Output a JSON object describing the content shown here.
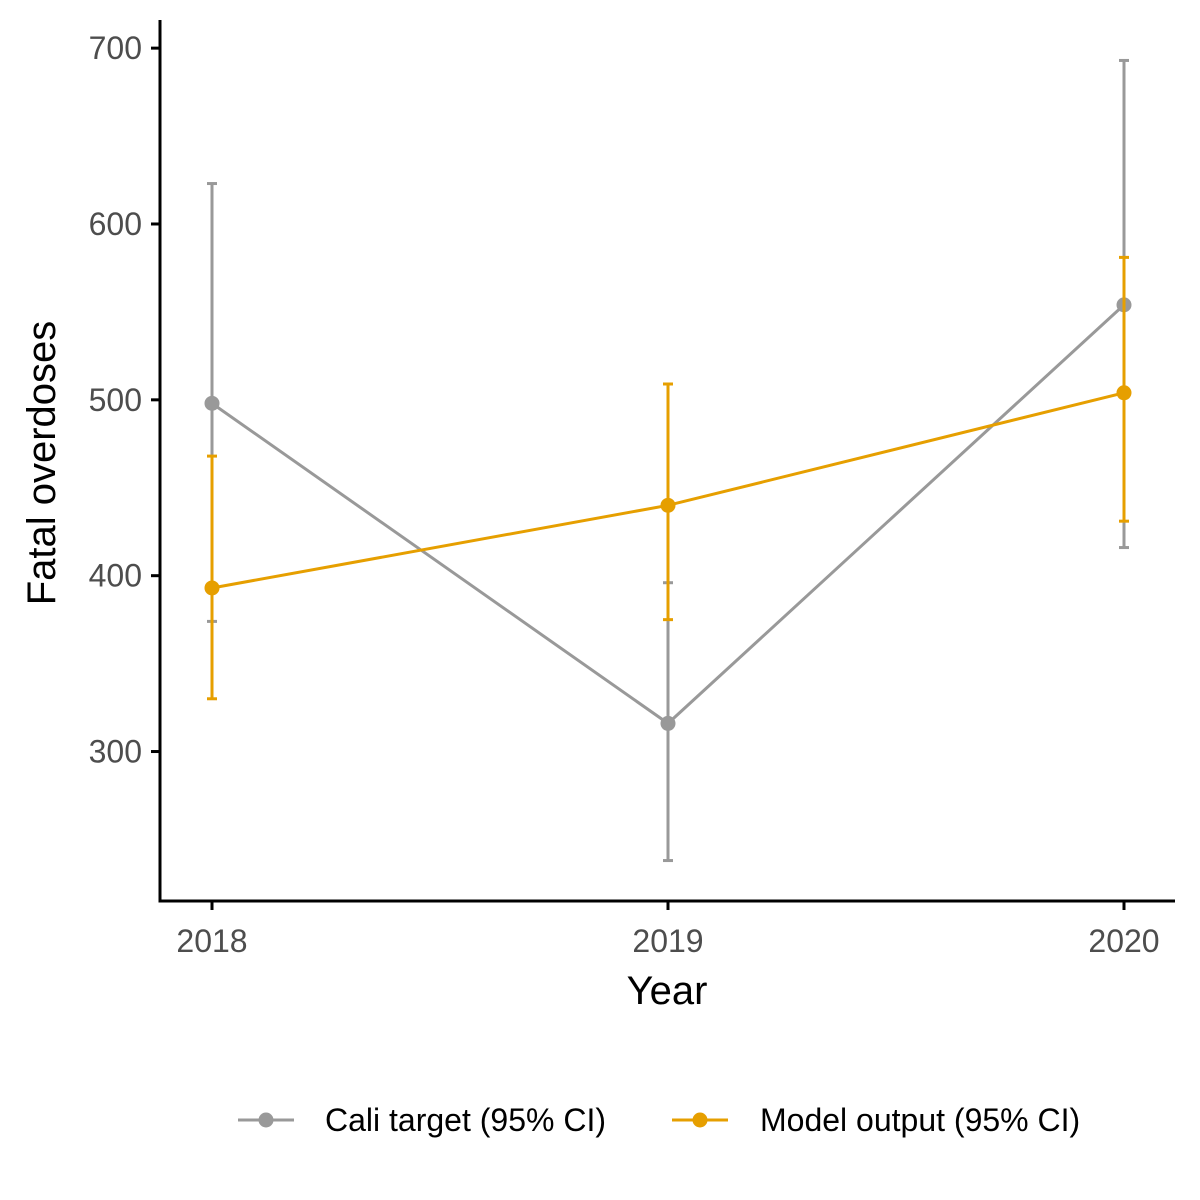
{
  "chart_data": {
    "type": "line",
    "xlabel": "Year",
    "ylabel": "Fatal overdoses",
    "categories": [
      "2018",
      "2019",
      "2020"
    ],
    "yticks": [
      300,
      400,
      500,
      600,
      700
    ],
    "ylim": [
      215,
      716
    ],
    "grid": false,
    "legend_position": "bottom",
    "series": [
      {
        "name": "Cali target (95% CI)",
        "color": "#999999",
        "values": [
          498,
          316,
          554
        ],
        "lower": [
          374,
          238,
          416
        ],
        "upper": [
          623,
          396,
          693
        ]
      },
      {
        "name": "Model output (95% CI)",
        "color": "#E69F00",
        "values": [
          393,
          440,
          504
        ],
        "lower": [
          330,
          375,
          431
        ],
        "upper": [
          468,
          509,
          581
        ]
      }
    ]
  }
}
